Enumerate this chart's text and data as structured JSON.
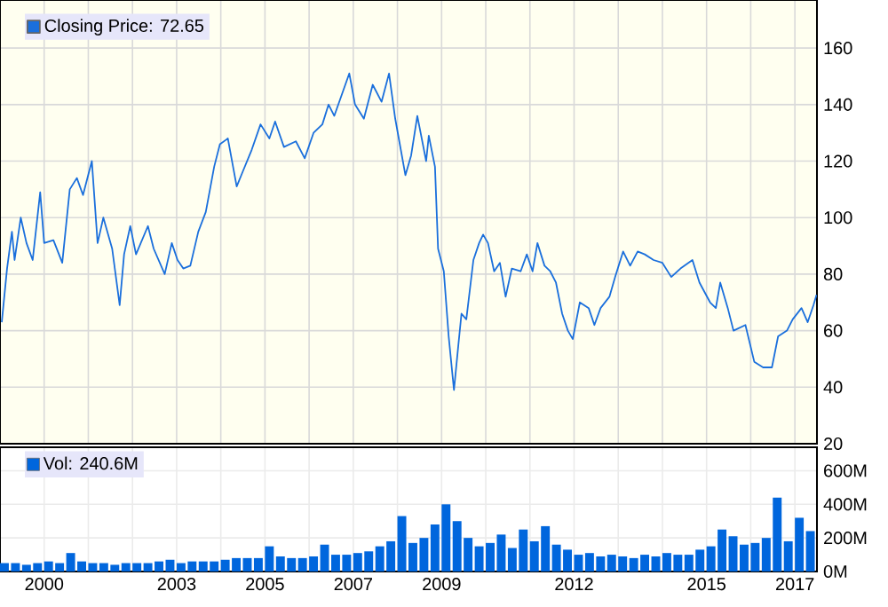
{
  "chart_data": [
    {
      "type": "line",
      "legend": "top left",
      "grid": true,
      "tick_labels": "y",
      "xlim": [
        1999.0,
        2017.5
      ],
      "ylim": [
        20,
        177
      ],
      "xticks": [
        {
          "value": 2000,
          "label": null
        },
        {
          "value": 2001,
          "label": null
        },
        {
          "value": 2002,
          "label": null
        },
        {
          "value": 2003,
          "label": null
        },
        {
          "value": 2004,
          "label": null
        },
        {
          "value": 2005,
          "label": null
        },
        {
          "value": 2006,
          "label": null
        },
        {
          "value": 2007,
          "label": null
        },
        {
          "value": 2008,
          "label": null
        },
        {
          "value": 2009,
          "label": null
        },
        {
          "value": 2010,
          "label": null
        },
        {
          "value": 2011,
          "label": null
        },
        {
          "value": 2012,
          "label": null
        },
        {
          "value": 2013,
          "label": null
        },
        {
          "value": 2014,
          "label": null
        },
        {
          "value": 2015,
          "label": null
        },
        {
          "value": 2016,
          "label": null
        },
        {
          "value": 2017,
          "label": null
        }
      ],
      "yticks": [
        20,
        40,
        60,
        80,
        100,
        120,
        140,
        160
      ],
      "series": [
        {
          "name": "Closing Price: 72.65",
          "color": "#1a6fdc",
          "x": [
            1999.04,
            1999.16,
            1999.27,
            1999.33,
            1999.47,
            1999.6,
            1999.74,
            1999.91,
            2000.0,
            2000.21,
            2000.41,
            2000.58,
            2000.74,
            2000.88,
            2001.08,
            2001.21,
            2001.34,
            2001.54,
            2001.71,
            2001.81,
            2001.95,
            2002.08,
            2002.35,
            2002.48,
            2002.73,
            2002.89,
            2003.02,
            2003.15,
            2003.31,
            2003.49,
            2003.66,
            2003.85,
            2003.98,
            2004.16,
            2004.36,
            2004.49,
            2004.7,
            2004.9,
            2005.1,
            2005.23,
            2005.43,
            2005.7,
            2005.9,
            2006.1,
            2006.3,
            2006.44,
            2006.57,
            2006.91,
            2007.04,
            2007.24,
            2007.44,
            2007.64,
            2007.81,
            2007.95,
            2008.18,
            2008.31,
            2008.45,
            2008.65,
            2008.71,
            2008.85,
            2008.92,
            2009.05,
            2009.16,
            2009.28,
            2009.38,
            2009.45,
            2009.56,
            2009.72,
            2009.85,
            2009.94,
            2010.05,
            2010.19,
            2010.32,
            2010.45,
            2010.59,
            2010.79,
            2010.93,
            2011.06,
            2011.17,
            2011.33,
            2011.46,
            2011.59,
            2011.73,
            2011.86,
            2011.97,
            2012.13,
            2012.33,
            2012.46,
            2012.6,
            2012.8,
            2012.93,
            2013.11,
            2013.27,
            2013.44,
            2013.6,
            2013.8,
            2014.0,
            2014.2,
            2014.41,
            2014.68,
            2014.84,
            2015.08,
            2015.21,
            2015.31,
            2015.48,
            2015.61,
            2015.88,
            2016.08,
            2016.28,
            2016.48,
            2016.62,
            2016.82,
            2016.95,
            2017.15,
            2017.29,
            2017.42,
            2017.49
          ],
          "values": [
            63,
            82,
            95,
            85,
            100,
            91,
            85,
            109,
            91,
            92,
            84,
            110,
            114,
            108,
            120,
            91,
            100,
            89,
            69,
            87,
            97,
            87,
            97,
            89,
            80,
            91,
            85,
            82,
            83,
            95,
            102,
            118,
            126,
            128,
            111,
            116,
            124,
            133,
            128,
            134,
            125,
            127,
            121,
            130,
            133,
            140,
            136,
            151,
            140,
            135,
            147,
            141,
            151,
            135,
            115,
            122,
            136,
            120,
            129,
            118,
            89,
            81,
            58,
            39,
            55,
            66,
            64,
            85,
            91,
            94,
            91,
            81,
            84,
            72,
            82,
            81,
            87,
            81,
            91,
            83,
            81,
            77,
            66,
            60,
            57,
            70,
            68,
            62,
            68,
            72,
            79,
            88,
            83,
            88,
            87,
            85,
            84,
            79,
            82,
            85,
            77,
            70,
            68,
            77,
            68,
            60,
            62,
            49,
            47,
            47,
            58,
            60,
            64,
            68,
            63,
            69,
            72.65
          ]
        }
      ]
    },
    {
      "type": "bar",
      "legend": "top left",
      "grid": true,
      "xlim": [
        1999.0,
        2017.5
      ],
      "ylim": [
        0,
        740
      ],
      "xticks": [
        {
          "value": 2000,
          "label": "2000"
        },
        {
          "value": 2001,
          "label": null
        },
        {
          "value": 2002,
          "label": null
        },
        {
          "value": 2003,
          "label": "2003"
        },
        {
          "value": 2004,
          "label": null
        },
        {
          "value": 2005,
          "label": "2005"
        },
        {
          "value": 2006,
          "label": null
        },
        {
          "value": 2007,
          "label": "2007"
        },
        {
          "value": 2008,
          "label": null
        },
        {
          "value": 2009,
          "label": "2009"
        },
        {
          "value": 2010,
          "label": null
        },
        {
          "value": 2011,
          "label": null
        },
        {
          "value": 2012,
          "label": "2012"
        },
        {
          "value": 2013,
          "label": null
        },
        {
          "value": 2014,
          "label": null
        },
        {
          "value": 2015,
          "label": "2015"
        },
        {
          "value": 2016,
          "label": null
        },
        {
          "value": 2017,
          "label": "2017"
        }
      ],
      "yticks": [
        {
          "value": 0,
          "label": "0M"
        },
        {
          "value": 200,
          "label": "200M"
        },
        {
          "value": 400,
          "label": "400M"
        },
        {
          "value": 600,
          "label": "600M"
        }
      ],
      "series": [
        {
          "name": "Vol: 240.6M",
          "color": "#0066dd",
          "x": [
            1999.1,
            1999.35,
            1999.6,
            1999.85,
            2000.1,
            2000.35,
            2000.6,
            2000.85,
            2001.1,
            2001.35,
            2001.6,
            2001.85,
            2002.1,
            2002.35,
            2002.6,
            2002.85,
            2003.1,
            2003.35,
            2003.6,
            2003.85,
            2004.1,
            2004.35,
            2004.6,
            2004.85,
            2005.1,
            2005.35,
            2005.6,
            2005.85,
            2006.1,
            2006.35,
            2006.6,
            2006.85,
            2007.1,
            2007.35,
            2007.6,
            2007.85,
            2008.1,
            2008.35,
            2008.6,
            2008.85,
            2009.1,
            2009.35,
            2009.6,
            2009.85,
            2010.1,
            2010.35,
            2010.6,
            2010.85,
            2011.1,
            2011.35,
            2011.6,
            2011.85,
            2012.1,
            2012.35,
            2012.6,
            2012.85,
            2013.1,
            2013.35,
            2013.6,
            2013.85,
            2014.1,
            2014.35,
            2014.6,
            2014.85,
            2015.1,
            2015.35,
            2015.6,
            2015.85,
            2016.1,
            2016.35,
            2016.6,
            2016.85,
            2017.1,
            2017.35
          ],
          "values": [
            50,
            50,
            40,
            50,
            60,
            50,
            110,
            60,
            50,
            50,
            40,
            50,
            50,
            50,
            60,
            70,
            50,
            60,
            60,
            60,
            70,
            80,
            80,
            80,
            150,
            90,
            80,
            80,
            90,
            160,
            100,
            100,
            110,
            120,
            150,
            180,
            330,
            170,
            200,
            280,
            400,
            300,
            200,
            150,
            170,
            220,
            140,
            250,
            180,
            270,
            160,
            130,
            100,
            110,
            90,
            100,
            90,
            80,
            100,
            90,
            110,
            100,
            100,
            130,
            150,
            250,
            210,
            160,
            170,
            200,
            440,
            180,
            320,
            240.6
          ]
        }
      ]
    }
  ]
}
